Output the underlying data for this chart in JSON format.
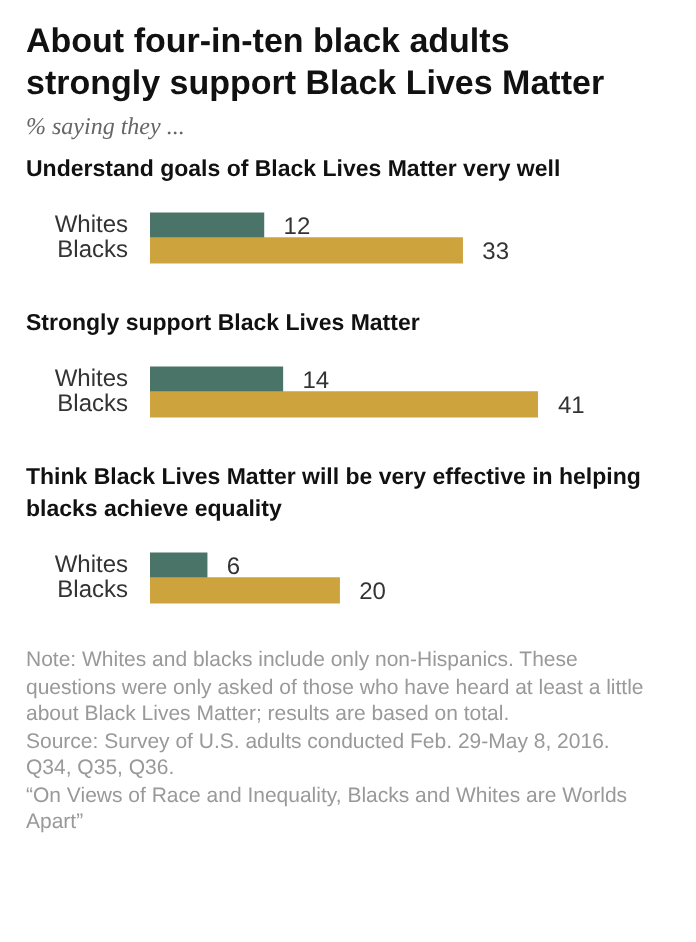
{
  "chart_data": [
    {
      "type": "other",
      "title": "About four-in-ten  black adults strongly support Black Lives Matter",
      "subtitle": "% saying they ..."
    },
    {
      "type": "bar",
      "orientation": "horizontal",
      "title": "Understand goals of Black Lives Matter very well",
      "categories": [
        "Whites",
        "Blacks"
      ],
      "values": [
        12,
        33
      ],
      "colors": [
        "#4a7467",
        "#cda33d"
      ],
      "data_labels": true,
      "tick_labels": "y"
    },
    {
      "type": "bar",
      "orientation": "horizontal",
      "title": "Strongly support Black Lives Matter",
      "categories": [
        "Whites",
        "Blacks"
      ],
      "values": [
        14,
        41
      ],
      "colors": [
        "#4a7467",
        "#cda33d"
      ],
      "data_labels": true,
      "tick_labels": "y"
    },
    {
      "type": "bar",
      "orientation": "horizontal",
      "title": "Think Black Lives Matter will be very effective in helping blacks achieve equality",
      "categories": [
        "Whites",
        "Blacks"
      ],
      "values": [
        6,
        20
      ],
      "colors": [
        "#4a7467",
        "#cda33d"
      ],
      "data_labels": true,
      "tick_labels": "y"
    },
    {
      "type": "other",
      "annotations": [
        "Note: Whites and blacks include only non-Hispanics. These questions were only asked of those who have heard at least a little about Black Lives Matter; results are based on total.",
        "Source: Survey of U.S. adults conducted Feb. 29-May 8, 2016. Q34, Q35, Q36.",
        "“On Views of Race and Inequality, Blacks and Whites are Worlds Apart”"
      ]
    }
  ]
}
